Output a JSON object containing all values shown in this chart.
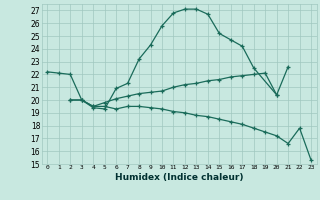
{
  "title": "",
  "xlabel": "Humidex (Indice chaleur)",
  "bg_color": "#c8e8e0",
  "grid_color": "#a0c8c0",
  "line_color": "#1a6b5a",
  "xlim": [
    -0.5,
    23.5
  ],
  "ylim": [
    15,
    27.5
  ],
  "xticks": [
    0,
    1,
    2,
    3,
    4,
    5,
    6,
    7,
    8,
    9,
    10,
    11,
    12,
    13,
    14,
    15,
    16,
    17,
    18,
    19,
    20,
    21,
    22,
    23
  ],
  "yticks": [
    15,
    16,
    17,
    18,
    19,
    20,
    21,
    22,
    23,
    24,
    25,
    26,
    27
  ],
  "line1_x": [
    0,
    1,
    2,
    3,
    4,
    5,
    6,
    7,
    8,
    9,
    10,
    11,
    12,
    13,
    14,
    15,
    16,
    17,
    18,
    20,
    21
  ],
  "line1_y": [
    22.2,
    22.1,
    22.0,
    20.0,
    19.4,
    19.3,
    20.9,
    21.3,
    23.2,
    24.3,
    25.8,
    26.8,
    27.1,
    27.1,
    26.7,
    25.2,
    24.7,
    24.2,
    22.5,
    20.4,
    22.6
  ],
  "line2_x": [
    2,
    3,
    4,
    5,
    6,
    7,
    8,
    9,
    10,
    11,
    12,
    13,
    14,
    15,
    16,
    17,
    18,
    19,
    20
  ],
  "line2_y": [
    20.0,
    20.0,
    19.5,
    19.8,
    20.1,
    20.3,
    20.5,
    20.6,
    20.7,
    21.0,
    21.2,
    21.3,
    21.5,
    21.6,
    21.8,
    21.9,
    22.0,
    22.1,
    20.4
  ],
  "line3_x": [
    2,
    3,
    4,
    5,
    6,
    7,
    8,
    9,
    10,
    11,
    12,
    13,
    14,
    15,
    16,
    17,
    18,
    19,
    20,
    21,
    22,
    23
  ],
  "line3_y": [
    20.0,
    20.0,
    19.5,
    19.5,
    19.3,
    19.5,
    19.5,
    19.4,
    19.3,
    19.1,
    19.0,
    18.8,
    18.7,
    18.5,
    18.3,
    18.1,
    17.8,
    17.5,
    17.2,
    16.6,
    17.8,
    15.3
  ]
}
